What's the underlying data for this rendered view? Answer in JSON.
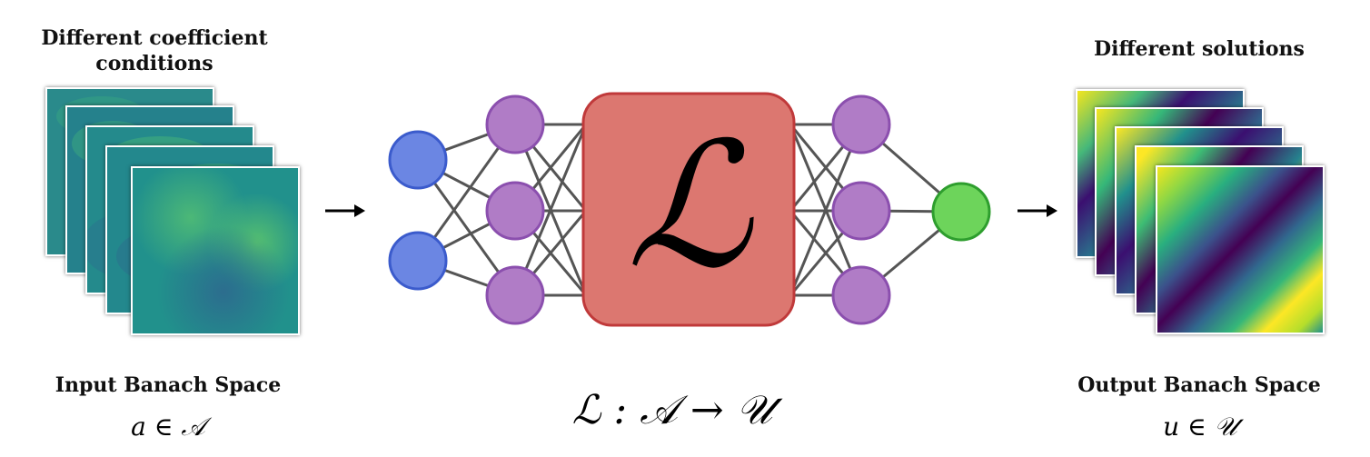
{
  "left": {
    "heading_line1": "Different coefficient",
    "heading_line2": "conditions",
    "space_label": "Input Banach Space",
    "member": "a ∈ 𝒜"
  },
  "center": {
    "operator_symbol": "ℒ",
    "mapping": "ℒ : 𝒜 → 𝒰"
  },
  "right": {
    "heading": "Different solutions",
    "space_label": "Output Banach Space",
    "member": "u ∈ 𝒰"
  },
  "colors": {
    "input_node": "#6b86e3",
    "hidden_node": "#b07cc6",
    "output_node": "#6dd45b",
    "operator_box": "#dc7770",
    "edge": "#555555"
  },
  "network": {
    "input_nodes": 2,
    "hidden_left_nodes": 3,
    "hidden_right_nodes": 3,
    "output_nodes": 1
  }
}
